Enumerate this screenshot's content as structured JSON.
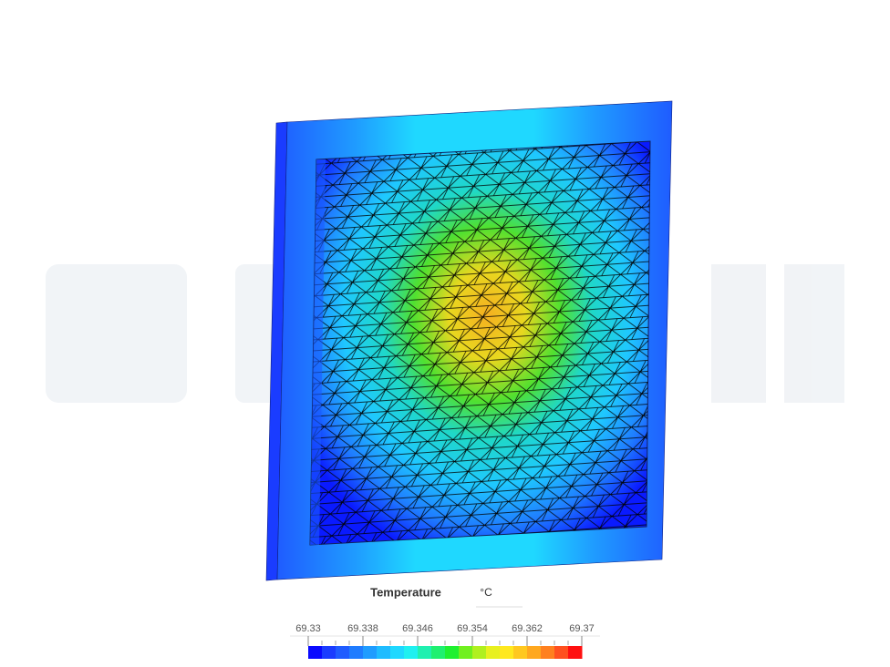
{
  "legend": {
    "title": "Temperature",
    "unit": "°C",
    "range": [
      69.33,
      69.37
    ],
    "ticks": [
      69.33,
      69.338,
      69.346,
      69.354,
      69.362,
      69.37
    ],
    "colors": [
      "#0a0aff",
      "#1a3cff",
      "#1f5cff",
      "#1f7cff",
      "#1f9cff",
      "#1fbcff",
      "#1fd8ff",
      "#1ff0f0",
      "#1ff0b0",
      "#1ff070",
      "#1ff030",
      "#70f01f",
      "#b0f01f",
      "#e8f01f",
      "#ffe81f",
      "#ffc81f",
      "#ffa81f",
      "#ff801f",
      "#ff501f",
      "#ff1010"
    ]
  }
}
